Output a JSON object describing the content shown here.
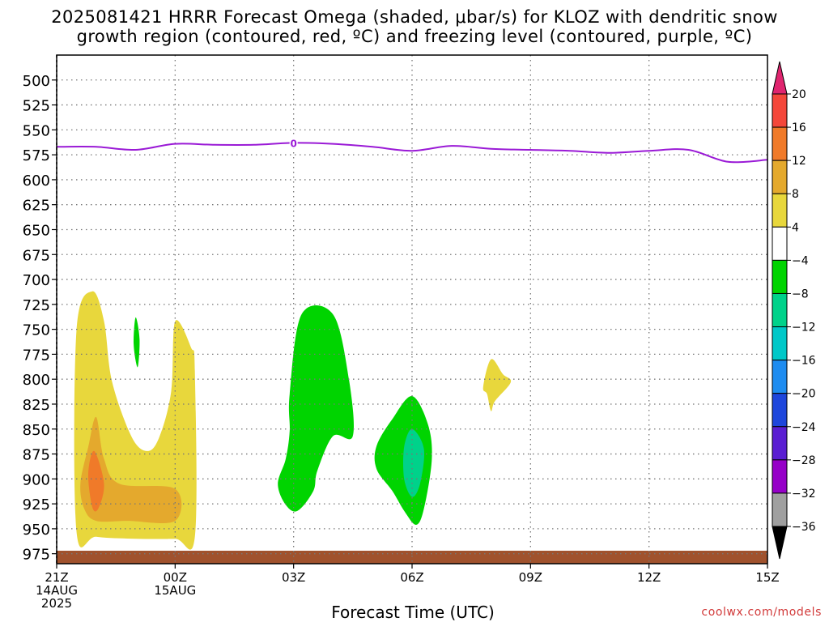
{
  "title_line1": "2025081421 HRRR Forecast Omega (shaded, μbar/s) for KLOZ with dendritic snow",
  "title_line2": "growth region (contoured, red, ºC) and freezing level (contoured, purple, ºC)",
  "credit": "coolwx.com/models",
  "chart_data": {
    "type": "heatmap",
    "xlabel": "Forecast Time (UTC)",
    "ylabel": "",
    "x_range_hours": [
      0,
      18
    ],
    "y_range_hpa": [
      475,
      985
    ],
    "y_ticks": [
      500,
      525,
      550,
      575,
      600,
      625,
      650,
      675,
      700,
      725,
      750,
      775,
      800,
      825,
      850,
      875,
      900,
      925,
      950,
      975
    ],
    "x_ticks": [
      {
        "hour": 0,
        "line1": "21Z",
        "line2": "14AUG",
        "line3": "2025"
      },
      {
        "hour": 3,
        "line1": "00Z",
        "line2": "15AUG",
        "line3": ""
      },
      {
        "hour": 6,
        "line1": "03Z",
        "line2": "",
        "line3": ""
      },
      {
        "hour": 9,
        "line1": "06Z",
        "line2": "",
        "line3": ""
      },
      {
        "hour": 12,
        "line1": "09Z",
        "line2": "",
        "line3": ""
      },
      {
        "hour": 15,
        "line1": "12Z",
        "line2": "",
        "line3": ""
      },
      {
        "hour": 18,
        "line1": "15Z",
        "line2": "",
        "line3": ""
      }
    ],
    "grid": true,
    "colorbar": {
      "labels": [
        "20",
        "16",
        "12",
        "8",
        "4",
        "-4",
        "-8",
        "-12",
        "-16",
        "-20",
        "-24",
        "-28",
        "-32",
        "-36"
      ],
      "colors": [
        "#e0256f",
        "#f4473a",
        "#f07a29",
        "#e4a92d",
        "#e8d73c",
        "#ffffff",
        "#00d400",
        "#00d28a",
        "#00c8c8",
        "#1e8cf0",
        "#1e46dc",
        "#5a1ed2",
        "#9600c8",
        "#a0a0a0",
        "#000000"
      ]
    },
    "freezing_level": {
      "color": "#9a1ad6",
      "label": "0",
      "label_hour": 6.0,
      "points": [
        [
          0,
          567
        ],
        [
          1,
          567
        ],
        [
          2,
          570
        ],
        [
          3,
          564
        ],
        [
          4,
          565
        ],
        [
          5,
          565
        ],
        [
          6,
          563
        ],
        [
          7,
          564
        ],
        [
          8,
          567
        ],
        [
          9,
          571
        ],
        [
          10,
          566
        ],
        [
          11,
          569
        ],
        [
          12,
          570
        ],
        [
          13,
          571
        ],
        [
          14,
          573
        ],
        [
          15,
          571
        ],
        [
          16,
          570
        ],
        [
          17,
          582
        ],
        [
          18,
          580
        ]
      ]
    },
    "omega_regions": [
      {
        "name": "yellow-left-u",
        "value_range": "4 to 8",
        "color": "#e8d73c",
        "points": [
          [
            0.5,
            952
          ],
          [
            0.5,
            752
          ],
          [
            0.9,
            712
          ],
          [
            1.2,
            742
          ],
          [
            1.4,
            802
          ],
          [
            1.9,
            858
          ],
          [
            2.3,
            872
          ],
          [
            2.6,
            858
          ],
          [
            2.9,
            812
          ],
          [
            3.0,
            742
          ],
          [
            3.4,
            768
          ],
          [
            3.5,
            792
          ],
          [
            3.5,
            958
          ],
          [
            3.0,
            960
          ],
          [
            2.0,
            960
          ],
          [
            1.0,
            958
          ]
        ]
      },
      {
        "name": "yellow-right-blob",
        "value_range": "4 to 8",
        "color": "#e8d73c",
        "points": [
          [
            11.0,
            780
          ],
          [
            11.3,
            795
          ],
          [
            11.5,
            803
          ],
          [
            11.1,
            822
          ],
          [
            11.0,
            832
          ],
          [
            10.9,
            815
          ],
          [
            10.8,
            808
          ]
        ]
      },
      {
        "name": "orange-region",
        "value_range": "8 to 12",
        "color": "#e4a92d",
        "points": [
          [
            0.6,
            905
          ],
          [
            0.8,
            868
          ],
          [
            1.0,
            838
          ],
          [
            1.2,
            880
          ],
          [
            1.6,
            905
          ],
          [
            3.0,
            910
          ],
          [
            3.0,
            942
          ],
          [
            1.8,
            942
          ],
          [
            1.0,
            942
          ],
          [
            0.7,
            930
          ]
        ]
      },
      {
        "name": "dark-orange-core",
        "value_range": "12 to 16",
        "color": "#f07a29",
        "points": [
          [
            0.8,
            895
          ],
          [
            0.95,
            872
          ],
          [
            1.2,
            905
          ],
          [
            1.05,
            930
          ],
          [
            0.9,
            928
          ]
        ]
      },
      {
        "name": "green-small-streak",
        "value_range": "-4 to -8",
        "color": "#00d400",
        "points": [
          [
            2.0,
            738
          ],
          [
            2.1,
            760
          ],
          [
            2.05,
            788
          ],
          [
            1.95,
            765
          ]
        ]
      },
      {
        "name": "green-large",
        "value_range": "-4 to -8",
        "color": "#00d400",
        "points": [
          [
            6.2,
            735
          ],
          [
            7.0,
            735
          ],
          [
            7.4,
            800
          ],
          [
            7.5,
            857
          ],
          [
            7.0,
            857
          ],
          [
            6.6,
            892
          ],
          [
            6.5,
            912
          ],
          [
            6.1,
            932
          ],
          [
            5.8,
            926
          ],
          [
            5.6,
            905
          ],
          [
            5.8,
            880
          ],
          [
            5.9,
            852
          ],
          [
            5.9,
            815
          ]
        ]
      },
      {
        "name": "green-lower-blob",
        "value_range": "-4 to -8",
        "color": "#00d400",
        "points": [
          [
            8.1,
            867
          ],
          [
            8.5,
            840
          ],
          [
            9.0,
            817
          ],
          [
            9.4,
            845
          ],
          [
            9.5,
            880
          ],
          [
            9.3,
            930
          ],
          [
            9.1,
            946
          ],
          [
            8.8,
            932
          ],
          [
            8.5,
            912
          ],
          [
            8.1,
            890
          ]
        ]
      },
      {
        "name": "teal-core",
        "value_range": "-8 to -12",
        "color": "#00d28a",
        "points": [
          [
            8.8,
            868
          ],
          [
            9.0,
            850
          ],
          [
            9.3,
            870
          ],
          [
            9.2,
            905
          ],
          [
            9.0,
            918
          ],
          [
            8.8,
            900
          ]
        ]
      }
    ],
    "ground": {
      "color": "#a0522d",
      "top_hpa": 972
    }
  }
}
